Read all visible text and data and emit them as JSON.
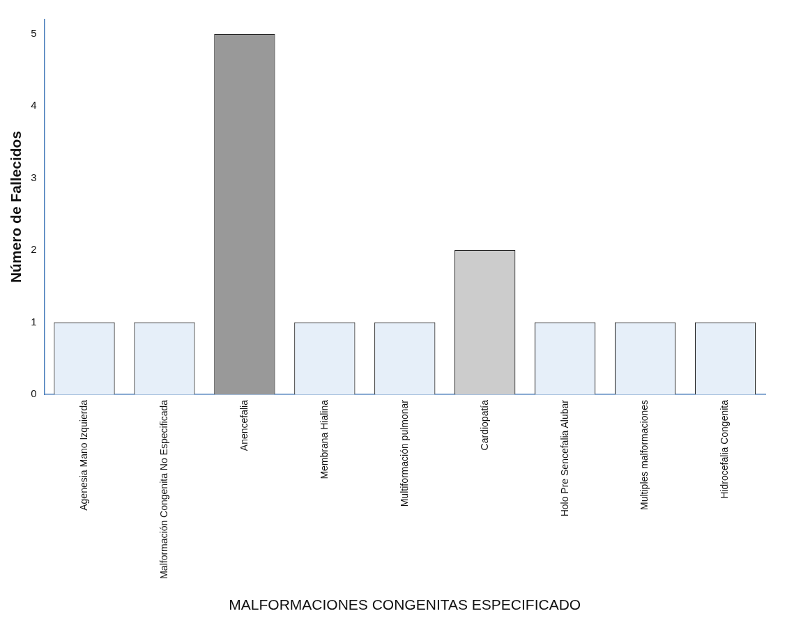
{
  "chart_data": {
    "type": "bar",
    "xlabel": "MALFORMACIONES CONGENITAS ESPECIFICADO",
    "ylabel": "Número de Fallecidos",
    "categories": [
      "Agenesia Mano Izquierda",
      "Malformación Congenita No Especificada",
      "Anencefalia",
      "Membrana Hialina",
      "Multiformación pulmonar",
      "Cardiopatía",
      "Holo Pre Sencefalia Alubar",
      "Multiples malformaciones",
      "Hidrocefalia Congenita"
    ],
    "values": [
      1,
      1,
      5,
      1,
      1,
      2,
      1,
      1,
      1
    ],
    "colors": [
      "#e6eff9",
      "#e6eff9",
      "#999999",
      "#e6eff9",
      "#e6eff9",
      "#cccccc",
      "#e6eff9",
      "#e6eff9",
      "#e6eff9"
    ],
    "ylim": [
      0,
      5.2
    ],
    "yticks": [
      0,
      1,
      2,
      3,
      4,
      5
    ],
    "grid": false,
    "legend": false
  }
}
